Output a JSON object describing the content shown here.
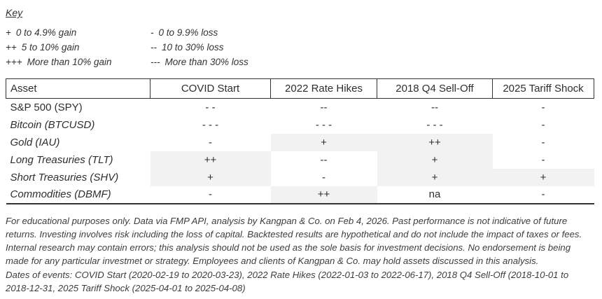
{
  "key": {
    "title": "Key",
    "gains": [
      {
        "symbol": "+",
        "label": "0 to 4.9% gain"
      },
      {
        "symbol": "++",
        "label": "5 to 10% gain"
      },
      {
        "symbol": "+++",
        "label": "More than 10% gain"
      }
    ],
    "losses": [
      {
        "symbol": "-",
        "label": "0 to 9.9% loss"
      },
      {
        "symbol": "--",
        "label": "10 to 30% loss"
      },
      {
        "symbol": "---",
        "label": "More than 30% loss"
      }
    ]
  },
  "table": {
    "headers": [
      "Asset",
      "COVID Start",
      "2022 Rate Hikes",
      "2018 Q4 Sell-Off",
      "2025 Tariff Shock"
    ],
    "rows": [
      {
        "asset": "S&P 500 (SPY)",
        "italic": false,
        "values": [
          "- -",
          "--",
          "--",
          "-"
        ],
        "highlights": [
          false,
          false,
          false,
          false
        ]
      },
      {
        "asset": "Bitcoin (BTCUSD)",
        "italic": true,
        "values": [
          "- - -",
          "- - -",
          "- - -",
          "-"
        ],
        "highlights": [
          false,
          false,
          false,
          false
        ]
      },
      {
        "asset": "Gold (IAU)",
        "italic": true,
        "values": [
          "-",
          "+",
          "++",
          "-"
        ],
        "highlights": [
          false,
          true,
          true,
          false
        ]
      },
      {
        "asset": "Long Treasuries (TLT)",
        "italic": true,
        "values": [
          "++",
          "--",
          "+",
          "-"
        ],
        "highlights": [
          true,
          false,
          true,
          false
        ]
      },
      {
        "asset": "Short Treasuries (SHV)",
        "italic": true,
        "values": [
          "+",
          "-",
          "+",
          "+"
        ],
        "highlights": [
          true,
          false,
          true,
          true
        ]
      },
      {
        "asset": "Commodities (DBMF)",
        "italic": true,
        "values": [
          "-",
          "++",
          "na",
          "-"
        ],
        "highlights": [
          false,
          true,
          false,
          false
        ]
      }
    ]
  },
  "footer": {
    "disclaimer": "For educational purposes only. Data via FMP API, analysis by Kangpan & Co. on Feb 4, 2026. Past performance is not indicative of future returns. Investing involves risk including the loss of capital. Backtested results are hypothetical and do not include the impact of taxes or fees. Internal research may contain errors; this analysis should not be used as the sole basis for investment decisions. No endorsement is being made for any particular investmet or strategy. Employees and clients of Kangpan & Co. may hold assets discussed in this analysis.",
    "dates": "Dates of events: COVID Start (2020-02-19 to 2020-03-23), 2022 Rate Hikes (2022-01-03 to 2022-06-17), 2018 Q4 Sell-Off (2018-10-01 to 2018-12-31, 2025 Tariff Shock (2025-04-01 to 2025-04-08)"
  },
  "colors": {
    "highlight_cell": "#f2f2f2",
    "table_border": "#333333",
    "text": "#303030"
  }
}
